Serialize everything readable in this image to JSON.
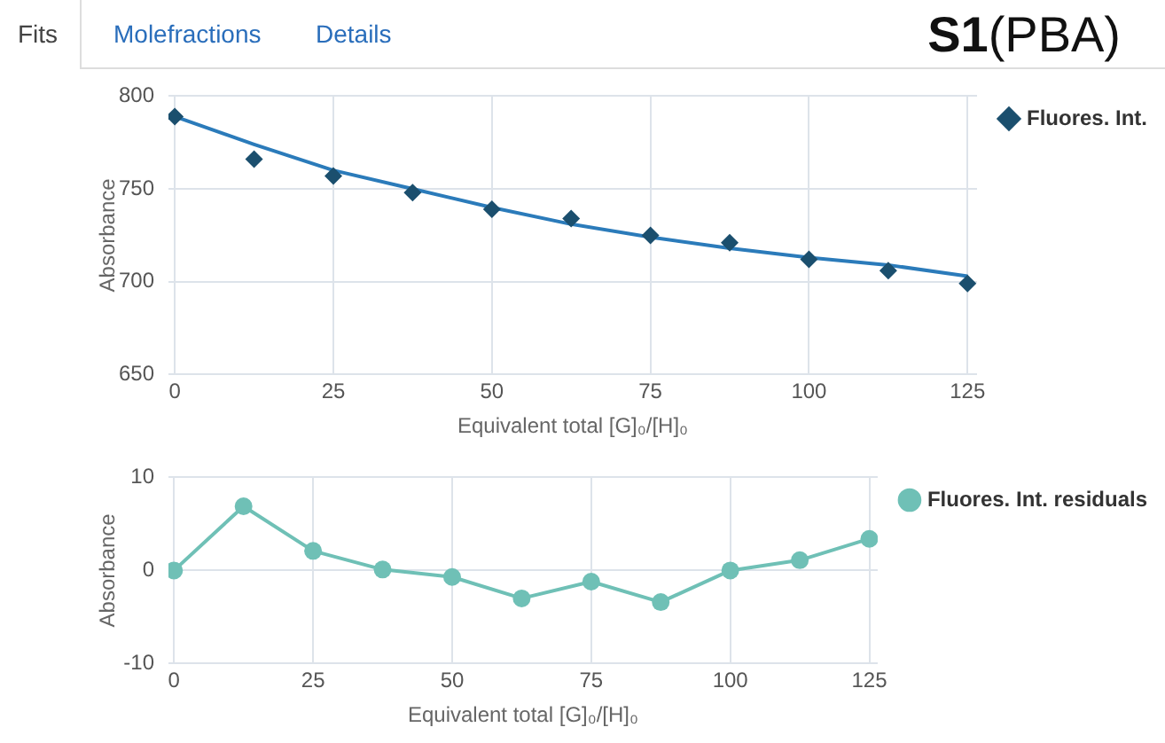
{
  "chart_data": [
    {
      "type": "scatter",
      "title": "S1(PBA)",
      "annotations": [
        "Fits",
        "Molefractions",
        "Details"
      ],
      "xlabel": "Equivalent total [G]₀/[H]₀",
      "ylabel": "Absorbance",
      "xlim": [
        -1,
        126.5
      ],
      "xticks": [
        0,
        25,
        50,
        75,
        100,
        125
      ],
      "ylim": [
        650,
        800
      ],
      "yticks": [
        650,
        700,
        750,
        800
      ],
      "grid": true,
      "legend": "right",
      "series": [
        {
          "name": "Fluores. Int.",
          "type": "scatter",
          "marker": "diamond",
          "color": "#1b4f6e",
          "x": [
            0,
            12.5,
            25,
            37.5,
            50,
            62.5,
            75,
            87.5,
            100,
            112.5,
            125
          ],
          "values": [
            789,
            766,
            757,
            748,
            739,
            734,
            725,
            721,
            712,
            706,
            699
          ]
        },
        {
          "type": "line",
          "marker": "none",
          "color": "#2b7bba",
          "x": [
            0,
            12.5,
            25,
            37.5,
            50,
            62.5,
            75,
            87.5,
            100,
            112.5,
            125
          ],
          "values": [
            789,
            774,
            760,
            750,
            740,
            731,
            724,
            718,
            713,
            709,
            703
          ]
        }
      ]
    },
    {
      "type": "line",
      "xlabel": "Equivalent total [G]₀/[H]₀",
      "ylabel": "Absorbance",
      "xlim": [
        -1,
        126.5
      ],
      "xticks": [
        0,
        25,
        50,
        75,
        100,
        125
      ],
      "ylim": [
        -10,
        10
      ],
      "yticks": [
        -10,
        0,
        10
      ],
      "grid": true,
      "legend": "right",
      "marker": "circle",
      "series": [
        {
          "name": "Fluores. Int. residuals",
          "color": "#6fc0b6",
          "x": [
            0,
            12.5,
            25,
            37.5,
            50,
            62.5,
            75,
            87.5,
            100,
            112.5,
            125
          ],
          "values": [
            0,
            6.9,
            2.1,
            0.1,
            -0.7,
            -3,
            -1.2,
            -3.4,
            0,
            1.1,
            3.4
          ]
        }
      ]
    }
  ]
}
